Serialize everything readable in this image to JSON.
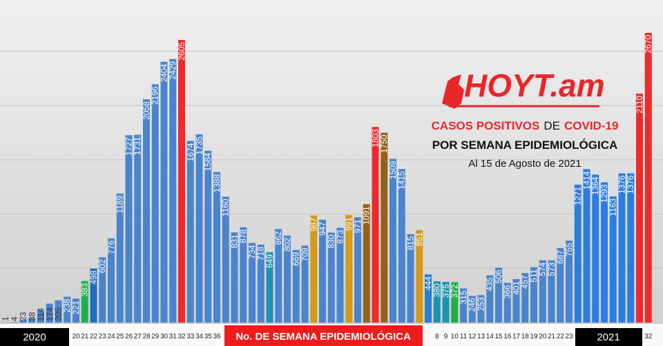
{
  "chart_data": {
    "type": "bar",
    "brand": "HOYT.am",
    "title_parts": [
      "CASOS POSITIVOS",
      "DE",
      "COVID-19"
    ],
    "subtitle": "POR SEMANA EPIDEMIOLÓGICA",
    "date_note": "Al 15 de Agosto de 2021",
    "x_label": "No. DE SEMANA EPIDEMIOLÓGICA",
    "year_labels": [
      "2020",
      "2021"
    ],
    "categories": [
      null,
      null,
      null,
      null,
      null,
      null,
      null,
      null,
      "20",
      "21",
      "22",
      "23",
      "24",
      "25",
      "26",
      "27",
      "28",
      "29",
      "30",
      "31",
      "32",
      "33",
      "34",
      "35",
      "36",
      null,
      null,
      null,
      null,
      null,
      null,
      null,
      null,
      null,
      null,
      null,
      null,
      null,
      null,
      null,
      null,
      null,
      null,
      null,
      null,
      null,
      null,
      null,
      null,
      "8",
      "9",
      "10",
      "11",
      "12",
      "13",
      "14",
      "15",
      "16",
      "17",
      "18",
      "19",
      "20",
      "21",
      "22",
      "23",
      null,
      null,
      null,
      null,
      null,
      null,
      null,
      null,
      "32"
    ],
    "values": [
      1,
      4,
      23,
      38,
      114,
      174,
      205,
      238,
      221,
      383,
      498,
      602,
      776,
      1189,
      1727,
      1731,
      2058,
      2196,
      2404,
      2429,
      2605,
      1674,
      1735,
      1584,
      1388,
      1160,
      831,
      878,
      734,
      718,
      649,
      862,
      802,
      669,
      709,
      987,
      947,
      830,
      873,
      991,
      971,
      1091,
      1803,
      1750,
      1509,
      1415,
      815,
      851,
      444,
      380,
      375,
      372,
      315,
      246,
      253,
      435,
      506,
      366,
      401,
      457,
      511,
      574,
      573,
      687,
      755,
      1271,
      1414,
      1364,
      1293,
      1163,
      1376,
      1376,
      2110,
      2670
    ],
    "colors": [
      "#4a84cc",
      "#4a84cc",
      "#4a84cc",
      "#4a84cc",
      "#4a84cc",
      "#4a84cc",
      "#4a84cc",
      "#4a84cc",
      "#4a84cc",
      "#1fae4b",
      "#1f6fc0",
      "#4a84cc",
      "#4a84cc",
      "#4a84cc",
      "#4a84cc",
      "#4a84cc",
      "#4a84cc",
      "#4a84cc",
      "#4a84cc",
      "#4a84cc",
      "#ee2a2a",
      "#4a84cc",
      "#4a84cc",
      "#4a84cc",
      "#4a84cc",
      "#4a84cc",
      "#4a84cc",
      "#4a84cc",
      "#4a84cc",
      "#4a84cc",
      "#1c93b3",
      "#4a84cc",
      "#4a84cc",
      "#4a84cc",
      "#4a84cc",
      "#d49a18",
      "#4a84cc",
      "#4a84cc",
      "#4a84cc",
      "#d49a18",
      "#4a84cc",
      "#93621a",
      "#ee2a2a",
      "#93621a",
      "#4a84cc",
      "#4a84cc",
      "#4a84cc",
      "#d49a18",
      "#2a7fd0",
      "#1c93b3",
      "#1c93b3",
      "#1fae4b",
      "#4a84cc",
      "#4a84cc",
      "#4a84cc",
      "#4a84cc",
      "#4a84cc",
      "#4a84cc",
      "#4a84cc",
      "#4a84cc",
      "#4a84cc",
      "#4a84cc",
      "#4a84cc",
      "#4a84cc",
      "#4a84cc",
      "#2d7de0",
      "#2d7de0",
      "#2d7de0",
      "#2d7de0",
      "#2d7de0",
      "#2d7de0",
      "#2d7de0",
      "#ee2a2a",
      "#ee2a2a"
    ],
    "ylim": [
      0,
      2700
    ],
    "yticks": [
      0,
      500,
      1000,
      1500,
      2000,
      2500
    ],
    "grid": true
  }
}
